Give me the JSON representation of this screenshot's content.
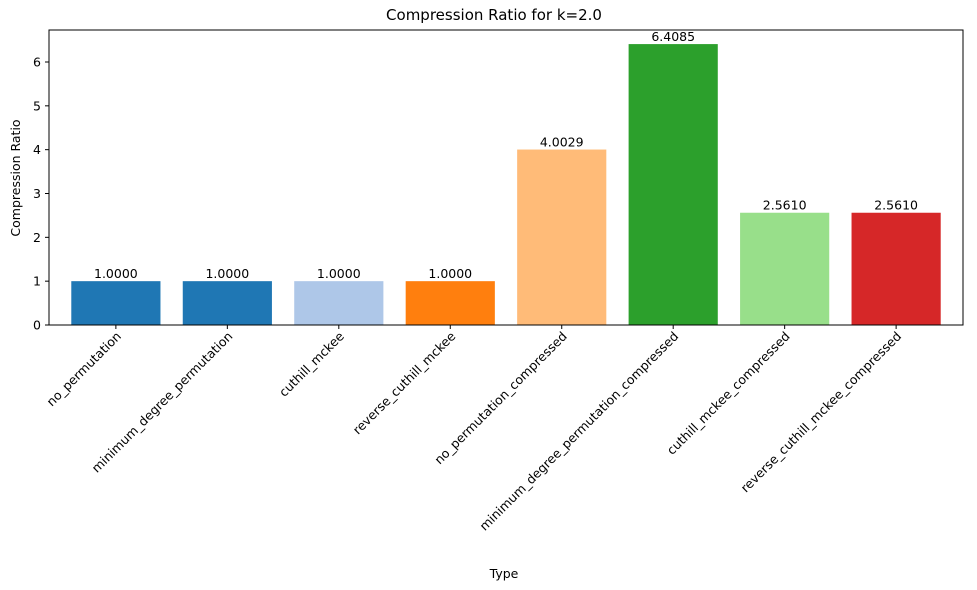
{
  "chart_data": {
    "type": "bar",
    "title": "Compression Ratio for k=2.0",
    "xlabel": "Type",
    "ylabel": "Compression Ratio",
    "ylim": [
      0,
      6.73
    ],
    "yticks": [
      0,
      1,
      2,
      3,
      4,
      5,
      6
    ],
    "grid": false,
    "categories": [
      "no_permutation",
      "minimum_degree_permutation",
      "cuthill_mckee",
      "reverse_cuthill_mckee",
      "no_permutation_compressed",
      "minimum_degree_permutation_compressed",
      "cuthill_mckee_compressed",
      "reverse_cuthill_mckee_compressed"
    ],
    "values": [
      1.0,
      1.0,
      1.0,
      1.0,
      4.0029,
      6.4085,
      2.561,
      2.561
    ],
    "value_labels": [
      "1.0000",
      "1.0000",
      "1.0000",
      "1.0000",
      "4.0029",
      "6.4085",
      "2.5610",
      "2.5610"
    ],
    "colors": [
      "#1f77b4",
      "#1f77b4",
      "#aec7e8",
      "#ff7f0e",
      "#ffbb78",
      "#2ca02c",
      "#98df8a",
      "#d62728"
    ]
  }
}
